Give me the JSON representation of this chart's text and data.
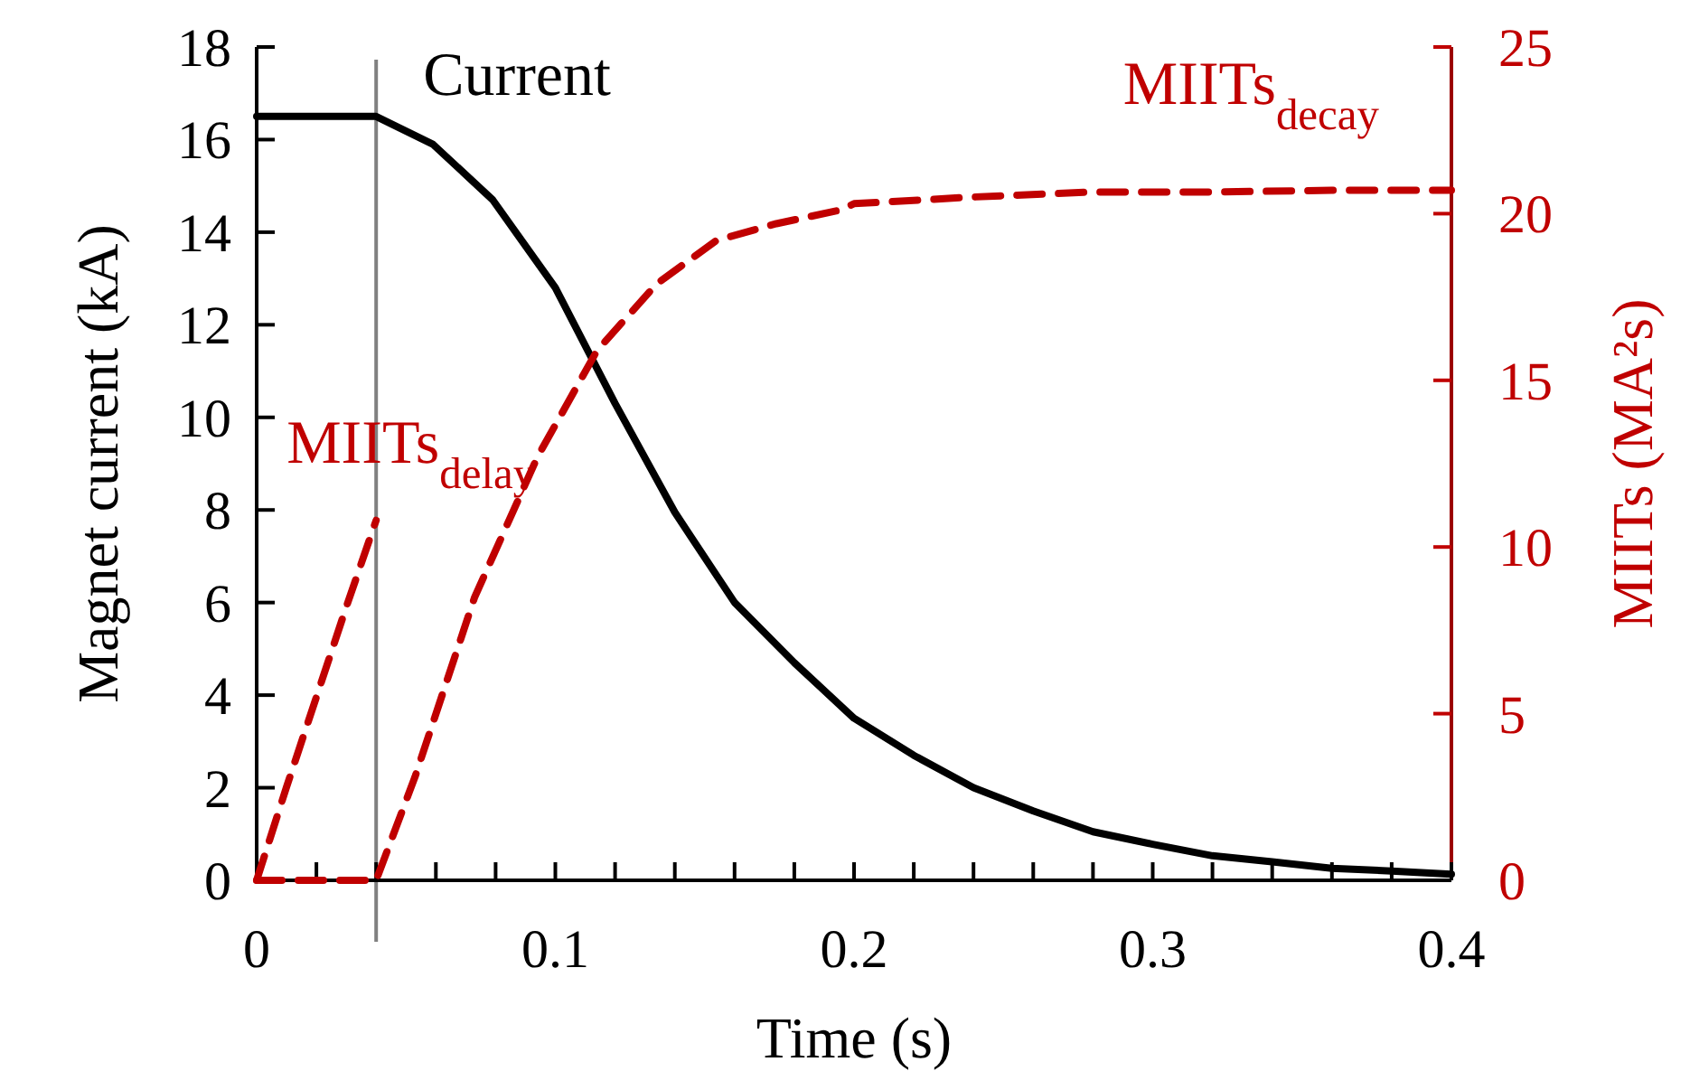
{
  "chart_data": {
    "type": "line",
    "xlabel": "Time (s)",
    "ylabel": "Magnet current (kA)",
    "y2label": "MIITs (MA²s)",
    "xlim": [
      0,
      0.4
    ],
    "xticks": [
      0,
      {
        "value": 0.02,
        "label": null
      },
      {
        "value": 0.04,
        "label": null
      },
      {
        "value": 0.06,
        "label": null
      },
      {
        "value": 0.08,
        "label": null
      },
      0.1,
      {
        "value": 0.12,
        "label": null
      },
      {
        "value": 0.14,
        "label": null
      },
      {
        "value": 0.16,
        "label": null
      },
      {
        "value": 0.18,
        "label": null
      },
      0.2,
      {
        "value": 0.22,
        "label": null
      },
      {
        "value": 0.24,
        "label": null
      },
      {
        "value": 0.26,
        "label": null
      },
      {
        "value": 0.28,
        "label": null
      },
      0.3,
      {
        "value": 0.32,
        "label": null
      },
      {
        "value": 0.34,
        "label": null
      },
      {
        "value": 0.36,
        "label": null
      },
      {
        "value": 0.38,
        "label": null
      },
      0.4
    ],
    "ylim": [
      0,
      18
    ],
    "yticks": [
      0,
      2,
      4,
      6,
      8,
      10,
      12,
      14,
      16,
      18
    ],
    "y2lim": [
      0,
      25
    ],
    "y2ticks": [
      0,
      5,
      10,
      15,
      20,
      25
    ],
    "grid": false,
    "marker": "none",
    "ref_lines": [
      {
        "axis": "x",
        "value": 0.04,
        "color": "#808080"
      }
    ],
    "series": [
      {
        "name": "Current",
        "color": "#000000",
        "line_style": "solid",
        "x": [
          0,
          0.04,
          0.059,
          0.079,
          0.1,
          0.12,
          0.14,
          0.16,
          0.18,
          0.2,
          0.22,
          0.24,
          0.26,
          0.28,
          0.3,
          0.32,
          0.34,
          0.36,
          0.38,
          0.4
        ],
        "values": [
          16.5,
          16.5,
          15.9,
          14.7,
          12.8,
          10.3,
          7.95,
          6.0,
          4.7,
          3.5,
          2.7,
          2.0,
          1.5,
          1.05,
          0.78,
          0.53,
          0.4,
          0.26,
          0.2,
          0.13
        ]
      },
      {
        "name": "MIITs$_{delay}$",
        "color": "#c00000",
        "line_style": "dashed",
        "axis": "y2",
        "x": [
          0,
          0.01,
          0.02,
          0.03,
          0.04
        ],
        "values": [
          0,
          2.8,
          5.5,
          8.2,
          10.8
        ]
      },
      {
        "name": "MIITs$_{decay}$",
        "color": "#c00000",
        "line_style": "dashed",
        "axis": "y2",
        "x": [
          0,
          0.04,
          0.053,
          0.073,
          0.094,
          0.114,
          0.134,
          0.154,
          0.174,
          0.195,
          0.2,
          0.24,
          0.28,
          0.32,
          0.36,
          0.4
        ],
        "values": [
          0,
          0,
          3.1,
          8.5,
          12.7,
          15.9,
          17.9,
          19.2,
          19.7,
          20.1,
          20.3,
          20.5,
          20.65,
          20.65,
          20.7,
          20.7
        ]
      }
    ]
  }
}
